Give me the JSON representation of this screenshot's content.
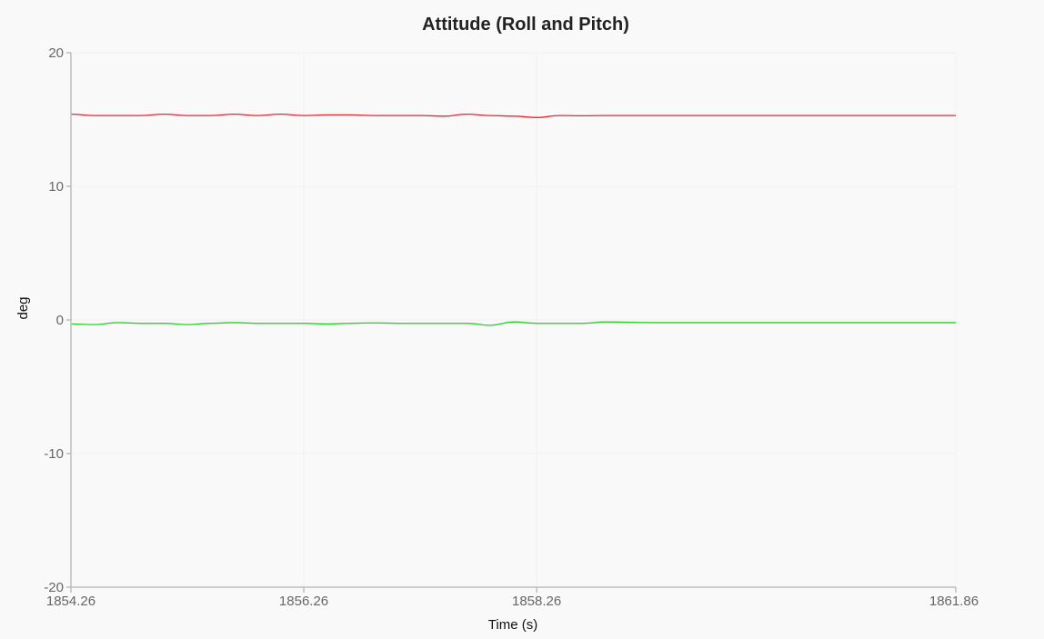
{
  "chart_data": {
    "type": "line",
    "title": "Attitude (Roll and Pitch)",
    "xlabel": "Time (s)",
    "ylabel": "deg",
    "xlim": [
      1854.26,
      1861.86
    ],
    "ylim": [
      -20,
      20
    ],
    "x_ticks": [
      "1854.26",
      "1856.26",
      "1858.26",
      "1861.86"
    ],
    "x_tick_values": [
      1854.26,
      1856.26,
      1858.26,
      1861.86
    ],
    "y_ticks": [
      "20",
      "10",
      "0",
      "-10",
      "-20"
    ],
    "y_tick_values": [
      20,
      10,
      0,
      -10,
      -20
    ],
    "grid": true,
    "series": [
      {
        "color": "#e8262d",
        "x": [
          1854.26,
          1854.46,
          1854.66,
          1854.86,
          1855.06,
          1855.26,
          1855.46,
          1855.66,
          1855.86,
          1856.06,
          1856.26,
          1856.46,
          1856.66,
          1856.86,
          1857.06,
          1857.26,
          1857.46,
          1857.66,
          1857.86,
          1858.06,
          1858.26,
          1858.46,
          1858.66,
          1858.86,
          1859.26,
          1859.86,
          1860.46,
          1861.06,
          1861.86
        ],
        "values": [
          15.4,
          15.3,
          15.3,
          15.3,
          15.4,
          15.3,
          15.3,
          15.4,
          15.3,
          15.4,
          15.3,
          15.35,
          15.35,
          15.3,
          15.3,
          15.3,
          15.25,
          15.4,
          15.3,
          15.25,
          15.15,
          15.3,
          15.28,
          15.3,
          15.3,
          15.3,
          15.3,
          15.3,
          15.3
        ]
      },
      {
        "color": "#22d622",
        "x": [
          1854.26,
          1854.46,
          1854.66,
          1854.86,
          1855.06,
          1855.26,
          1855.46,
          1855.66,
          1855.86,
          1856.06,
          1856.26,
          1856.46,
          1856.66,
          1856.86,
          1857.06,
          1857.26,
          1857.46,
          1857.66,
          1857.86,
          1858.06,
          1858.26,
          1858.46,
          1858.66,
          1858.86,
          1859.26,
          1859.86,
          1860.46,
          1861.06,
          1861.86
        ],
        "values": [
          -0.3,
          -0.35,
          -0.2,
          -0.25,
          -0.25,
          -0.35,
          -0.25,
          -0.2,
          -0.25,
          -0.25,
          -0.25,
          -0.3,
          -0.25,
          -0.22,
          -0.25,
          -0.25,
          -0.25,
          -0.25,
          -0.4,
          -0.15,
          -0.25,
          -0.25,
          -0.25,
          -0.15,
          -0.2,
          -0.2,
          -0.2,
          -0.2,
          -0.2
        ]
      }
    ]
  }
}
